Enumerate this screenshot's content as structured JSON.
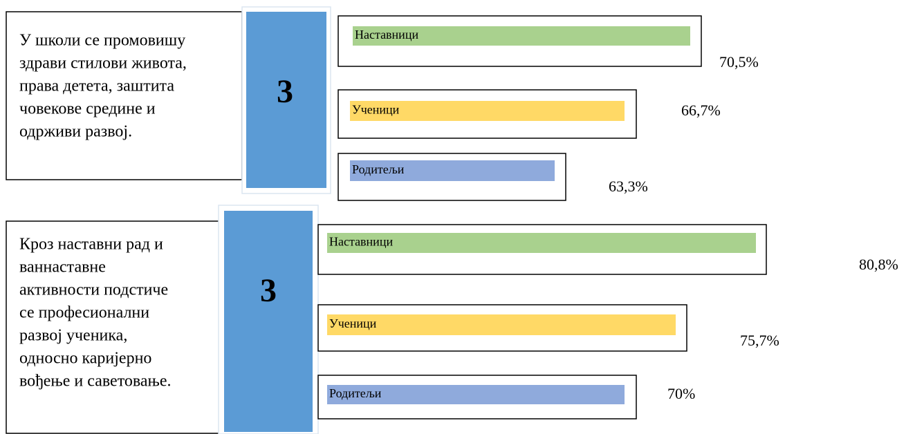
{
  "items": [
    {
      "text": [
        "У школи се промовишу",
        "здрави стилови живота,",
        "права детета, заштита",
        "човекове средине и",
        "одрживи развој."
      ],
      "score": "3",
      "groups": [
        {
          "name": "Наставници",
          "value": "70,5%"
        },
        {
          "name": "Ученици",
          "value": "66,7%"
        },
        {
          "name": "Родитељи",
          "value": "63,3%"
        }
      ]
    },
    {
      "text": [
        "Кроз наставни рад и",
        "ваннаставне",
        "активности подстиче",
        "се професионални",
        "развој  ученика,",
        "односно каријерно",
        "вођење и саветовање."
      ],
      "score": "3",
      "groups": [
        {
          "name": "Наставници",
          "value": "80,8%"
        },
        {
          "name": "Ученици",
          "value": "75,7%"
        },
        {
          "name": "Родитељи",
          "value": "70%"
        }
      ]
    }
  ]
}
